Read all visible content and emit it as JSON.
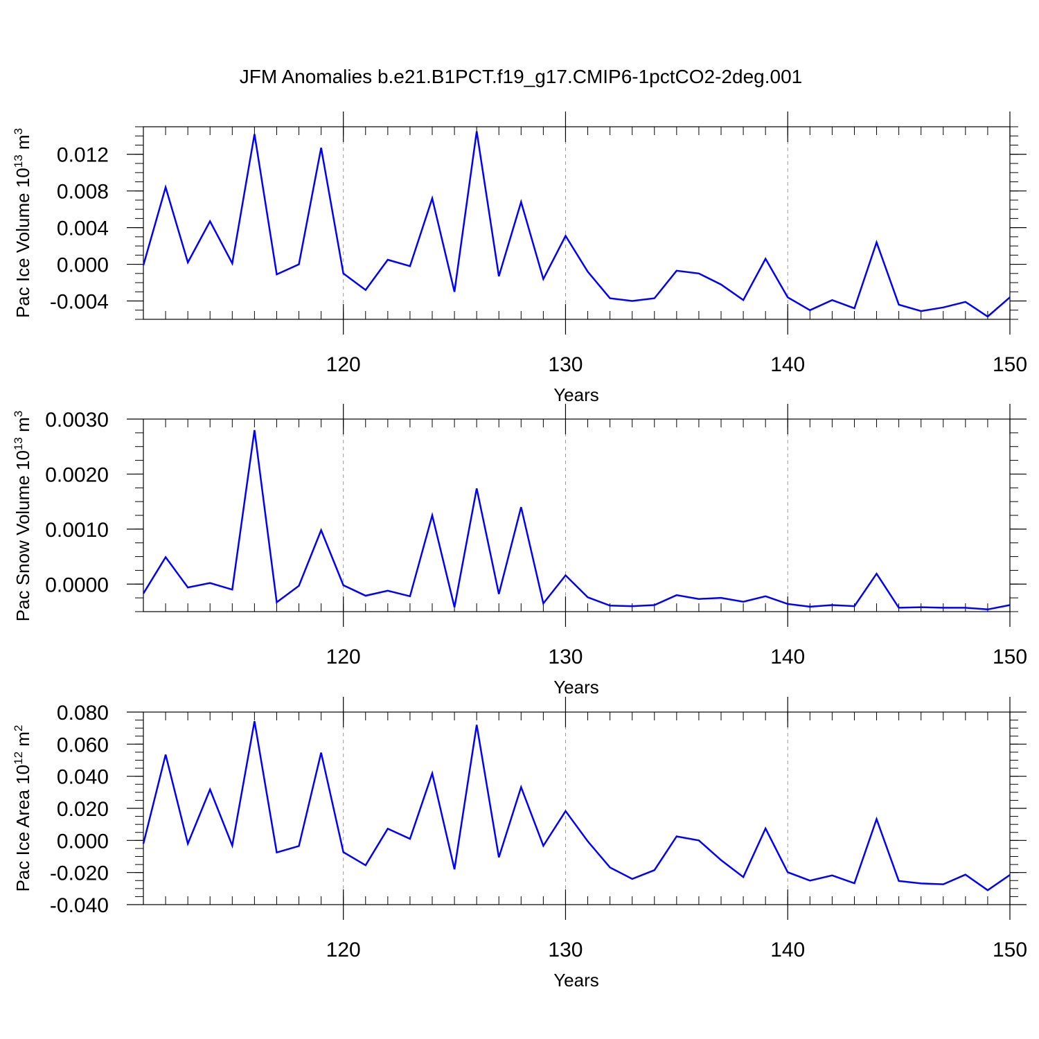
{
  "title": "JFM Anomalies b.e21.B1PCT.f19_g17.CMIP6-1pctCO2-2deg.001",
  "colors": {
    "line": "#0000ff",
    "axis": "#000000",
    "grid": "#999999"
  },
  "chart_data": [
    {
      "type": "line",
      "ylabel_main": "Pac Ice Volume 10",
      "ylabel_exp": "13",
      "ylabel_unit": " m",
      "ylabel_unit_exp": "3",
      "xlabel": "Years",
      "xlim": [
        111,
        150
      ],
      "ylim": [
        -0.006,
        0.015
      ],
      "yticks": [
        "0.012",
        "0.008",
        "0.004",
        "0.000",
        "-0.004"
      ],
      "ytick_values": [
        0.012,
        0.008,
        0.004,
        0.0,
        -0.004
      ],
      "xticks": [
        "120",
        "130",
        "140",
        "150"
      ],
      "xtick_values": [
        120,
        130,
        140,
        150
      ],
      "x": [
        111,
        112,
        113,
        114,
        115,
        116,
        117,
        118,
        119,
        120,
        121,
        122,
        123,
        124,
        125,
        126,
        127,
        128,
        129,
        130,
        131,
        132,
        133,
        134,
        135,
        136,
        137,
        138,
        139,
        140,
        141,
        142,
        143,
        144,
        145,
        146,
        147,
        148,
        149,
        150
      ],
      "y": [
        -0.0001,
        0.0084,
        0.0002,
        0.0047,
        0.0001,
        0.0142,
        -0.0011,
        0.0,
        0.0127,
        -0.001,
        -0.0028,
        0.0005,
        -0.0002,
        0.0072,
        -0.003,
        0.0145,
        -0.0013,
        0.0068,
        -0.0016,
        0.0031,
        -0.0008,
        -0.0037,
        -0.004,
        -0.0037,
        -0.0007,
        -0.001,
        -0.0022,
        -0.0039,
        0.0006,
        -0.0036,
        -0.005,
        -0.0039,
        -0.0048,
        0.0024,
        -0.0044,
        -0.0051,
        -0.0047,
        -0.0041,
        -0.0057,
        -0.0036
      ]
    },
    {
      "type": "line",
      "ylabel_main": "Pac Snow Volume 10",
      "ylabel_exp": "13",
      "ylabel_unit": " m",
      "ylabel_unit_exp": "3",
      "xlabel": "Years",
      "xlim": [
        111,
        150
      ],
      "ylim": [
        -0.0005,
        0.003
      ],
      "yticks": [
        "0.0030",
        "0.0020",
        "0.0010",
        "0.0000"
      ],
      "ytick_values": [
        0.003,
        0.002,
        0.001,
        0.0
      ],
      "xticks": [
        "120",
        "130",
        "140",
        "150"
      ],
      "xtick_values": [
        120,
        130,
        140,
        150
      ],
      "x": [
        111,
        112,
        113,
        114,
        115,
        116,
        117,
        118,
        119,
        120,
        121,
        122,
        123,
        124,
        125,
        126,
        127,
        128,
        129,
        130,
        131,
        132,
        133,
        134,
        135,
        136,
        137,
        138,
        139,
        140,
        141,
        142,
        143,
        144,
        145,
        146,
        147,
        148,
        149,
        150
      ],
      "y": [
        -0.00017,
        0.00049,
        -6e-05,
        2e-05,
        -0.0001,
        0.0028,
        -0.00033,
        -3e-05,
        0.00098,
        -2e-05,
        -0.00021,
        -0.00012,
        -0.00022,
        0.00125,
        -0.00042,
        0.00174,
        -0.00018,
        0.0014,
        -0.00035,
        0.00016,
        -0.00024,
        -0.00039,
        -0.0004,
        -0.00038,
        -0.0002,
        -0.00027,
        -0.00025,
        -0.00032,
        -0.00022,
        -0.00036,
        -0.00041,
        -0.00038,
        -0.0004,
        0.00019,
        -0.00043,
        -0.00042,
        -0.00043,
        -0.00043,
        -0.00046,
        -0.00038
      ]
    },
    {
      "type": "line",
      "ylabel_main": "Pac Ice Area 10",
      "ylabel_exp": "12",
      "ylabel_unit": " m",
      "ylabel_unit_exp": "2",
      "xlabel": "Years",
      "xlim": [
        111,
        150
      ],
      "ylim": [
        -0.04,
        0.08
      ],
      "yticks": [
        "0.080",
        "0.060",
        "0.040",
        "0.020",
        "0.000",
        "-0.020",
        "-0.040"
      ],
      "ytick_values": [
        0.08,
        0.06,
        0.04,
        0.02,
        0.0,
        -0.02,
        -0.04
      ],
      "xticks": [
        "120",
        "130",
        "140",
        "150"
      ],
      "xtick_values": [
        120,
        130,
        140,
        150
      ],
      "x": [
        111,
        112,
        113,
        114,
        115,
        116,
        117,
        118,
        119,
        120,
        121,
        122,
        123,
        124,
        125,
        126,
        127,
        128,
        129,
        130,
        131,
        132,
        133,
        134,
        135,
        136,
        137,
        138,
        139,
        140,
        141,
        142,
        143,
        144,
        145,
        146,
        147,
        148,
        149,
        150
      ],
      "y": [
        -0.002,
        0.0535,
        -0.002,
        0.0318,
        -0.0032,
        0.0743,
        -0.0075,
        -0.0035,
        0.0547,
        -0.0073,
        -0.0155,
        0.0073,
        0.001,
        0.0418,
        -0.018,
        0.072,
        -0.0105,
        0.0332,
        -0.0033,
        0.0183,
        -0.0005,
        -0.0168,
        -0.024,
        -0.0185,
        0.0025,
        0.0,
        -0.0123,
        -0.0228,
        0.0075,
        -0.0198,
        -0.025,
        -0.0218,
        -0.0267,
        0.0133,
        -0.0253,
        -0.0268,
        -0.0273,
        -0.0213,
        -0.031,
        -0.0215
      ]
    }
  ]
}
